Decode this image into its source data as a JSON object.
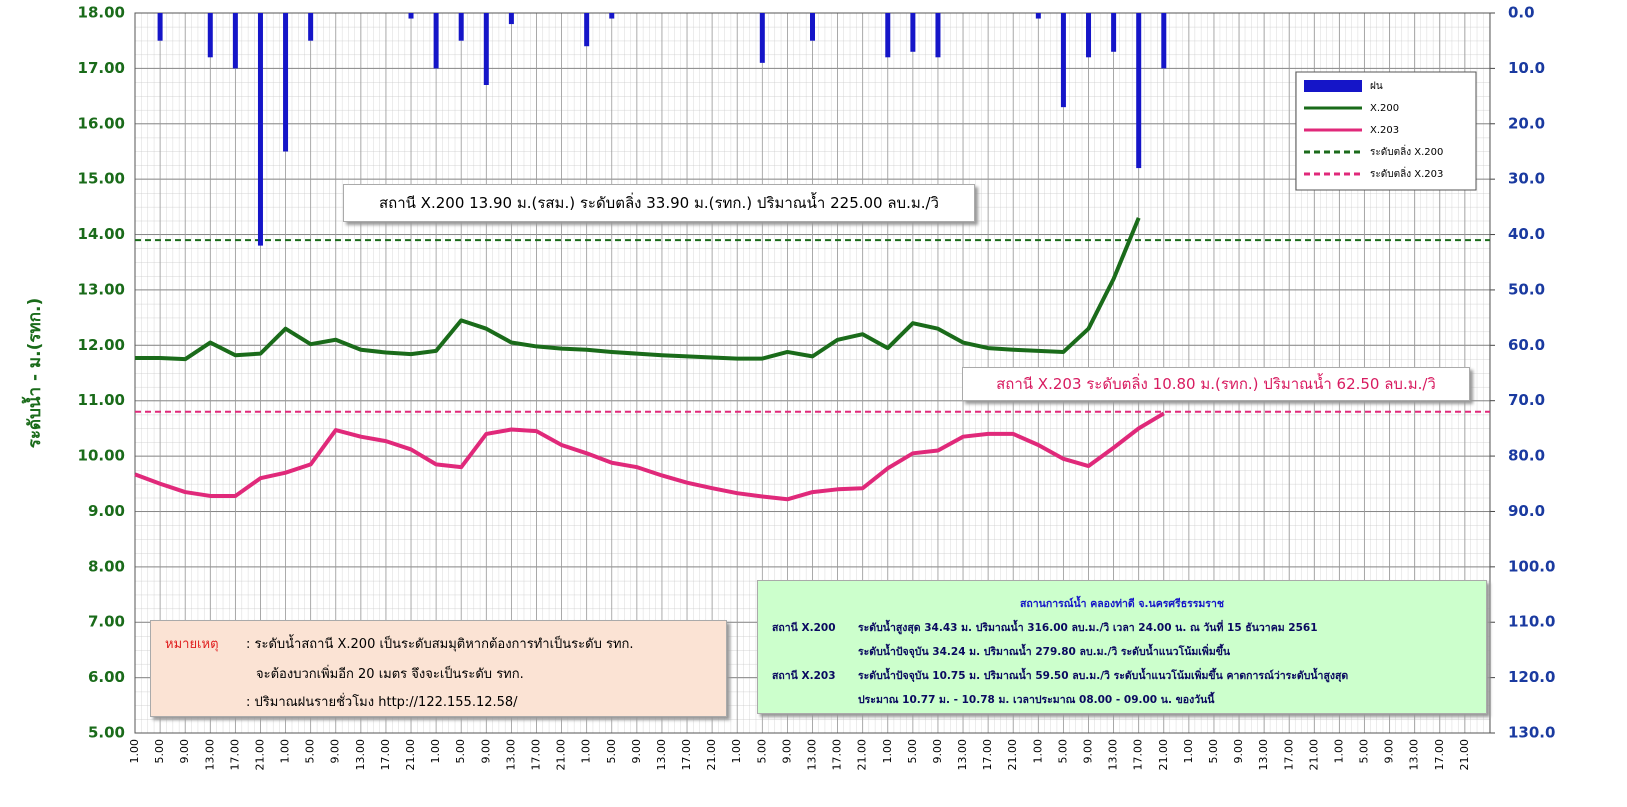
{
  "chart_data": {
    "type": "line",
    "y_axis_label": "ระดับน้ำ  -  ม.(รทก.)",
    "categories": [
      "1.00",
      "5.00",
      "9.00",
      "13.00",
      "17.00",
      "21.00",
      "1.00",
      "5.00",
      "9.00",
      "13.00",
      "17.00",
      "21.00",
      "1.00",
      "5.00",
      "9.00",
      "13.00",
      "17.00",
      "21.00",
      "1.00",
      "5.00",
      "9.00",
      "13.00",
      "17.00",
      "21.00",
      "1.00",
      "5.00",
      "9.00",
      "13.00",
      "17.00",
      "21.00",
      "1.00",
      "5.00",
      "9.00",
      "13.00",
      "17.00",
      "21.00",
      "1.00",
      "5.00",
      "9.00",
      "13.00",
      "17.00",
      "21.00",
      "1.00",
      "5.00",
      "9.00",
      "13.00",
      "17.00",
      "21.00",
      "1.00",
      "5.00",
      "9.00",
      "13.00",
      "17.00",
      "21.00"
    ],
    "series": [
      {
        "name": "ฝน",
        "type": "bar",
        "axis": "y2",
        "color": "#1515c8",
        "values": [
          0,
          5,
          0,
          8,
          10,
          42,
          25,
          5,
          0,
          0,
          0,
          1,
          10,
          5,
          13,
          2,
          0,
          0,
          6,
          1,
          0,
          0,
          0,
          0,
          0,
          9,
          0,
          5,
          0,
          0,
          8,
          7,
          8,
          0,
          0,
          0,
          1,
          17,
          8,
          7,
          28,
          10,
          null,
          null,
          null,
          null,
          null,
          null,
          null,
          null,
          null,
          null,
          null,
          null
        ]
      },
      {
        "name": "X.200",
        "type": "line",
        "color": "#1a6b1a",
        "values": [
          11.77,
          11.77,
          11.75,
          12.05,
          11.82,
          11.85,
          12.3,
          12.02,
          12.1,
          11.92,
          11.87,
          11.84,
          11.9,
          12.45,
          12.3,
          12.05,
          11.98,
          11.94,
          11.92,
          11.88,
          11.85,
          11.82,
          11.8,
          11.78,
          11.76,
          11.76,
          11.88,
          11.8,
          12.1,
          12.2,
          11.95,
          12.4,
          12.3,
          12.05,
          11.95,
          11.92,
          11.9,
          11.88,
          12.3,
          13.2,
          14.3,
          null,
          null,
          null,
          null,
          null,
          null,
          null,
          null,
          null,
          null,
          null,
          null,
          null
        ]
      },
      {
        "name": "X.203",
        "type": "line",
        "color": "#e0297a",
        "values": [
          9.67,
          9.5,
          9.35,
          9.28,
          9.28,
          9.6,
          9.7,
          9.85,
          10.47,
          10.35,
          10.27,
          10.12,
          9.85,
          9.8,
          10.4,
          10.48,
          10.45,
          10.2,
          10.05,
          9.88,
          9.8,
          9.65,
          9.52,
          9.42,
          9.33,
          9.27,
          9.22,
          9.35,
          9.4,
          9.42,
          9.78,
          10.05,
          10.1,
          10.35,
          10.4,
          10.4,
          10.2,
          9.95,
          9.82,
          10.15,
          10.5,
          10.77,
          null,
          null,
          null,
          null,
          null,
          null,
          null,
          null,
          null,
          null,
          null,
          null
        ]
      }
    ],
    "thresholds": [
      {
        "name": "ระดับตลิ่ง X.200",
        "value": 13.9,
        "color": "#1a6b1a"
      },
      {
        "name": "ระดับตลิ่ง X.203",
        "value": 10.8,
        "color": "#e0297a"
      }
    ],
    "ylim": [
      5,
      18
    ],
    "yticks": [
      {
        "value": 5,
        "label": "5.00"
      },
      {
        "value": 6,
        "label": "6.00"
      },
      {
        "value": 7,
        "label": "7.00"
      },
      {
        "value": 8,
        "label": "8.00"
      },
      {
        "value": 9,
        "label": "9.00"
      },
      {
        "value": 10,
        "label": "10.00"
      },
      {
        "value": 11,
        "label": "11.00"
      },
      {
        "value": 12,
        "label": "12.00"
      },
      {
        "value": 13,
        "label": "13.00"
      },
      {
        "value": 14,
        "label": "14.00"
      },
      {
        "value": 15,
        "label": "15.00"
      },
      {
        "value": 16,
        "label": "16.00"
      },
      {
        "value": 17,
        "label": "17.00"
      },
      {
        "value": 18,
        "label": "18.00"
      }
    ],
    "y2lim": [
      0,
      130
    ],
    "y2_inverted": true,
    "y2ticks": [
      {
        "value": 0,
        "label": "0.0"
      },
      {
        "value": 10,
        "label": "10.0"
      },
      {
        "value": 20,
        "label": "20.0"
      },
      {
        "value": 30,
        "label": "30.0"
      },
      {
        "value": 40,
        "label": "40.0"
      },
      {
        "value": 50,
        "label": "50.0"
      },
      {
        "value": 60,
        "label": "60.0"
      },
      {
        "value": 70,
        "label": "70.0"
      },
      {
        "value": 80,
        "label": "80.0"
      },
      {
        "value": 90,
        "label": "90.0"
      },
      {
        "value": 100,
        "label": "100.0"
      },
      {
        "value": 110,
        "label": "110.0"
      },
      {
        "value": 120,
        "label": "120.0"
      },
      {
        "value": 130,
        "label": "130.0"
      }
    ],
    "grid": true,
    "legend": "upper right",
    "annotations": {
      "x200": "สถานี X.200 13.90 ม.(รสม.) ระดับตลิ่ง 33.90 ม.(รทก.) ปริมาณน้ำ 225.00 ลบ.ม./วิ",
      "x203": "สถานี X.203 ระดับตลิ่ง 10.80 ม.(รทก.) ปริมาณน้ำ 62.50 ลบ.ม./วิ"
    },
    "note": {
      "title": "หมายเหตุ",
      "lines": [
        ": ระดับน้ำสถานี  X.200  เป็นระดับสมมุติหากต้องการทำเป็นระดับ  รทก.",
        "จะต้องบวกเพิ่มอีก  20  เมตร จึงจะเป็นระดับ  รทก.",
        ": ปริมาณฝนรายชั่วโมง  http://122.155.12.58/"
      ]
    },
    "info": {
      "title": "สถานการณ์น้ำ  คลองท่าดี   จ.นครศรีธรรมราช",
      "station1": "สถานี X.200",
      "station1_lines": [
        "ระดับน้ำสูงสุด  34.43  ม. ปริมาณน้ำ  316.00  ลบ.ม./วิ   เวลา  24.00 น.  ณ วันที่ 15 ธันวาคม  2561",
        "ระดับน้ำปัจจุบัน  34.24 ม. ปริมาณน้ำ   279.80 ลบ.ม./วิ   ระดับน้ำแนวโน้มเพิ่มขึ้น"
      ],
      "station2": "สถานี X.203",
      "station2_lines": [
        "ระดับน้ำปัจจุบัน   10.75 ม. ปริมาณน้ำ  59.50 ลบ.ม./วิ   ระดับน้ำแนวโน้มเพิ่มขึ้น   คาดการณ์ว่าระดับน้ำสูงสุด",
        "ประมาณ  10.77  ม. - 10.78 ม. เวลาประมาณ  08.00 - 09.00 น.  ของวันนี้"
      ]
    }
  }
}
